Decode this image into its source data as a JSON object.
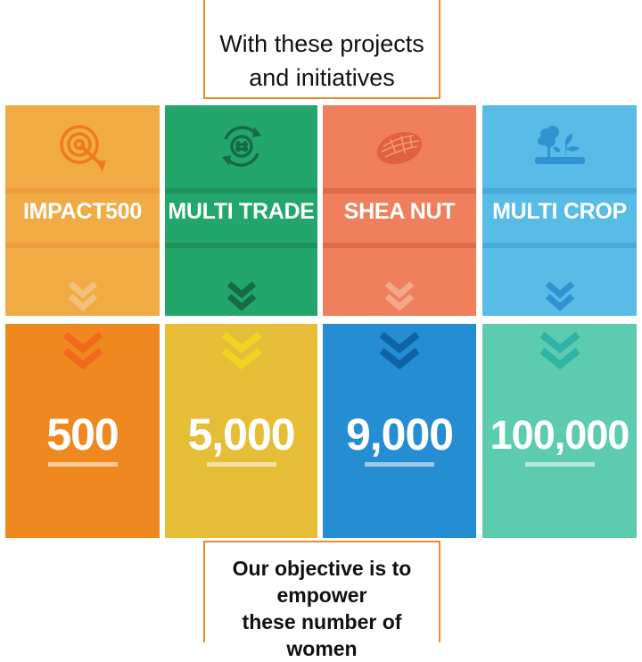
{
  "header": {
    "line1": "With these projects",
    "line2": "and initiatives"
  },
  "footer": {
    "line1": "Our objective is to",
    "line2": "empower",
    "line3": "these number of women"
  },
  "projects": [
    {
      "label": "IMPACT500",
      "icon": "target-icon",
      "value": "500",
      "colors": {
        "top": "#f1ab44",
        "band": "#ee9d3c",
        "bottom": "#ef891f",
        "icon": "#ee7a1d"
      }
    },
    {
      "label": "MULTI TRADE",
      "icon": "exchange-icon",
      "value": "5,000",
      "colors": {
        "top": "#23a66c",
        "band": "#1e915d",
        "bottom": "#e6bd36",
        "icon": "#166b45"
      }
    },
    {
      "label": "SHEA NUT",
      "icon": "shea-nut-icon",
      "value": "9,000",
      "colors": {
        "top": "#ef7f5d",
        "band": "#e06a4c",
        "bottom": "#258dd1",
        "icon": "#e0603f"
      }
    },
    {
      "label": "MULTI CROP",
      "icon": "plants-icon",
      "value": "100,000",
      "colors": {
        "top": "#58bce6",
        "band": "#48a9da",
        "bottom": "#5ccbb0",
        "icon": "#2f93cf"
      }
    }
  ]
}
